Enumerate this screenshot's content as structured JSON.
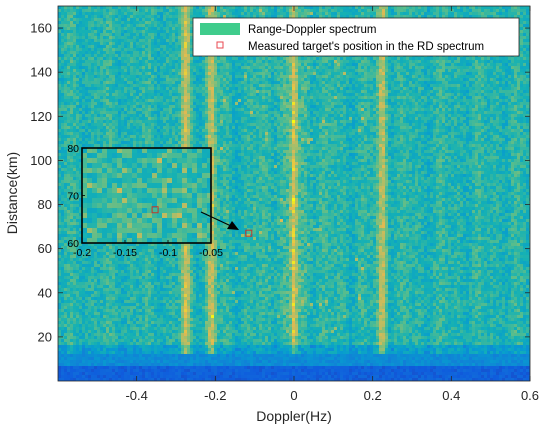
{
  "chart_data": {
    "type": "heatmap",
    "title": "",
    "xlabel": "Doppler(Hz)",
    "ylabel": "Distance(km)",
    "xlim": [
      -0.6,
      0.6
    ],
    "ylim": [
      0,
      170
    ],
    "xticks": [
      -0.4,
      -0.2,
      0,
      0.2,
      0.4,
      0.6
    ],
    "xtick_labels": [
      "-0.4",
      "-0.2",
      "0",
      "0.2",
      "0.4",
      "0.6"
    ],
    "yticks": [
      20,
      40,
      60,
      80,
      100,
      120,
      140,
      160
    ],
    "ytick_labels": [
      "20",
      "40",
      "60",
      "80",
      "100",
      "120",
      "140",
      "160"
    ],
    "grid": false,
    "colormap": "parula",
    "legend": {
      "placement": "top-right",
      "entries": [
        {
          "label": "Range-Doppler spectrum",
          "marker": "patch",
          "color": "#3fcc8c"
        },
        {
          "label": "Measured target's position in the RD spectrum",
          "marker": "square",
          "color": "#e8474f"
        }
      ]
    },
    "bright_bands_doppler": [
      -0.275,
      -0.21,
      0.0,
      0.225
    ],
    "target": {
      "doppler": -0.115,
      "distance": 67
    },
    "inset": {
      "xlim": [
        -0.2,
        -0.05
      ],
      "ylim": [
        60,
        80
      ],
      "xticks": [
        -0.2,
        -0.15,
        -0.1,
        -0.05
      ],
      "xtick_labels": [
        "-0.2",
        "-0.15",
        "-0.1",
        "-0.05"
      ],
      "yticks": [
        60,
        70,
        80
      ],
      "ytick_labels": [
        "60",
        "70",
        "80"
      ],
      "target": {
        "doppler": -0.115,
        "distance": 67
      }
    }
  }
}
